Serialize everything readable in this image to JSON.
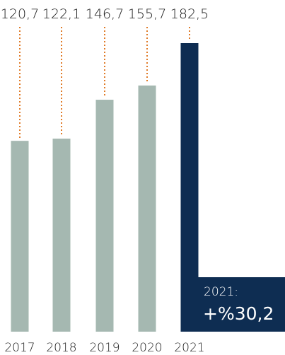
{
  "chart_data": {
    "type": "bar",
    "categories": [
      "2017",
      "2018",
      "2019",
      "2020",
      "2021"
    ],
    "values": [
      120.7,
      122.1,
      146.7,
      155.7,
      182.5
    ],
    "value_labels": [
      "120,7",
      "122,1",
      "146,7",
      "155,7",
      "182,5"
    ],
    "highlight_category": "2021",
    "colors": {
      "bar": "#a5b8b1",
      "highlight_bar": "#0e2d52",
      "leader_line": "#e07b28",
      "text": "#1a1a1a",
      "callout_text": "#ffffff"
    },
    "callout": {
      "year": "2021:",
      "change": "+%30,2"
    },
    "ylim": [
      0,
      182.5
    ],
    "grid": false
  }
}
